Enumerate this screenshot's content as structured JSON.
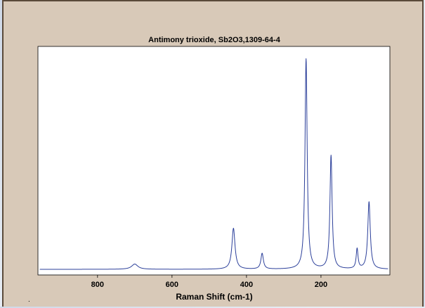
{
  "colors": {
    "frame_background": "#d8c9b8",
    "plot_background": "#ffffff",
    "series_line": "#2b3f9a"
  },
  "chart_data": {
    "type": "line",
    "title": "Antimony trioxide, Sb2O3,1309-64-4",
    "xlabel": "Raman Shift (cm-1)",
    "ylabel": "",
    "x_reversed": true,
    "xlim": [
      960,
      15
    ],
    "ylim": [
      0,
      1.02
    ],
    "xticks": [
      800,
      600,
      400,
      200
    ],
    "xtick_labels": [
      "800",
      "600",
      "400",
      "200"
    ],
    "show_y_ticks": false,
    "grid": false,
    "baseline": 0.0,
    "peaks": [
      {
        "x": 700,
        "height": 0.025,
        "width": 10
      },
      {
        "x": 435,
        "height": 0.195,
        "width": 5
      },
      {
        "x": 358,
        "height": 0.075,
        "width": 4
      },
      {
        "x": 240,
        "height": 1.0,
        "width": 3.5
      },
      {
        "x": 173,
        "height": 0.54,
        "width": 3.5
      },
      {
        "x": 103,
        "height": 0.095,
        "width": 3
      },
      {
        "x": 71,
        "height": 0.32,
        "width": 4
      }
    ],
    "stray_mark": "."
  }
}
